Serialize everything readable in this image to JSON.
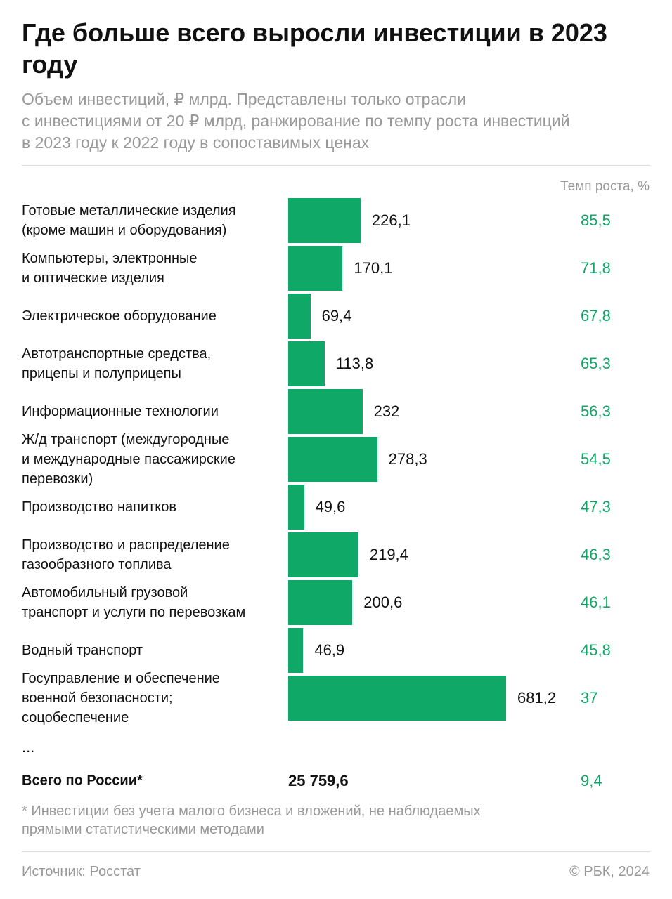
{
  "chart_data": {
    "type": "bar",
    "title": "Где больше всего выросли инвестиции в 2023\nгоду",
    "subtitle": "Объем инвестиций, ₽ млрд. Представлены только отрасли\nс инвестициями от 20 ₽ млрд, ранжирование по темпу роста инвестиций\nв 2023 году к 2022 году в сопоставимых ценах",
    "categories": [
      "Готовые металлические изделия\n(кроме машин и оборудования)",
      "Компьютеры, электронные\nи оптические изделия",
      "Электрическое оборудование",
      "Автотранспортные средства,\nприцепы и полуприцепы",
      "Информационные технологии",
      "Ж/д транспорт (междугородные\nи международные пассажирские\nперевозки)",
      "Производство напитков",
      "Производство и распределение\nгазообразного топлива",
      "Автомобильный грузовой\nтранспорт и услуги по перевозкам",
      "Водный транспорт",
      "Госуправление и обеспечение\nвоенной безопасности;\nсоцобеспечение"
    ],
    "values": [
      226.1,
      170.1,
      69.4,
      113.8,
      232,
      278.3,
      49.6,
      219.4,
      200.6,
      46.9,
      681.2
    ],
    "value_labels": [
      "226,1",
      "170,1",
      "69,4",
      "113,8",
      "232",
      "278,3",
      "49,6",
      "219,4",
      "200,6",
      "46,9",
      "681,2"
    ],
    "color": "#10a866",
    "growth_header": "Темп роста, %",
    "growth": [
      85.5,
      71.8,
      67.8,
      65.3,
      56.3,
      54.5,
      47.3,
      46.3,
      46.1,
      45.8,
      37
    ],
    "growth_labels": [
      "85,5",
      "71,8",
      "67,8",
      "65,3",
      "56,3",
      "54,5",
      "47,3",
      "46,3",
      "46,1",
      "45,8",
      "37"
    ],
    "growth_color": "#10a866",
    "ellipsis": "...",
    "total_label": "Всего по России*",
    "total_value": 25759.6,
    "total_value_label": "25 759,6",
    "total_growth": 9.4,
    "total_growth_label": "9,4",
    "footnote": "* Инвестиции без учета малого бизнеса и вложений, не наблюдаемых\nпрямыми статистическими методами",
    "source": "Источник: Росстат",
    "copyright": "© РБК, 2024"
  }
}
